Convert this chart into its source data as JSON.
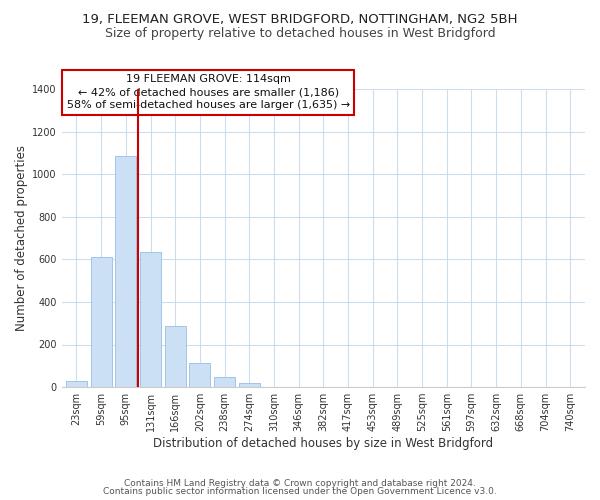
{
  "title_line1": "19, FLEEMAN GROVE, WEST BRIDGFORD, NOTTINGHAM, NG2 5BH",
  "title_line2": "Size of property relative to detached houses in West Bridgford",
  "xlabel": "Distribution of detached houses by size in West Bridgford",
  "ylabel": "Number of detached properties",
  "bar_labels": [
    "23sqm",
    "59sqm",
    "95sqm",
    "131sqm",
    "166sqm",
    "202sqm",
    "238sqm",
    "274sqm",
    "310sqm",
    "346sqm",
    "382sqm",
    "417sqm",
    "453sqm",
    "489sqm",
    "525sqm",
    "561sqm",
    "597sqm",
    "632sqm",
    "668sqm",
    "704sqm",
    "740sqm"
  ],
  "bar_values": [
    30,
    610,
    1085,
    635,
    285,
    115,
    46,
    18,
    0,
    0,
    0,
    0,
    0,
    0,
    0,
    0,
    0,
    0,
    0,
    0,
    0
  ],
  "bar_color": "#cce0f5",
  "bar_edge_color": "#a0c4e8",
  "vline_x": 2.5,
  "vline_color": "#cc0000",
  "annotation_line1": "19 FLEEMAN GROVE: 114sqm",
  "annotation_line2": "← 42% of detached houses are smaller (1,186)",
  "annotation_line3": "58% of semi-detached houses are larger (1,635) →",
  "annotation_box_color": "#ffffff",
  "annotation_box_edge": "#cc0000",
  "ylim": [
    0,
    1400
  ],
  "yticks": [
    0,
    200,
    400,
    600,
    800,
    1000,
    1200,
    1400
  ],
  "footer_line1": "Contains HM Land Registry data © Crown copyright and database right 2024.",
  "footer_line2": "Contains public sector information licensed under the Open Government Licence v3.0.",
  "background_color": "#ffffff",
  "grid_color": "#ccdded",
  "title_fontsize": 9.5,
  "subtitle_fontsize": 9,
  "axis_label_fontsize": 8.5,
  "tick_fontsize": 7,
  "annotation_fontsize": 8,
  "footer_fontsize": 6.5
}
